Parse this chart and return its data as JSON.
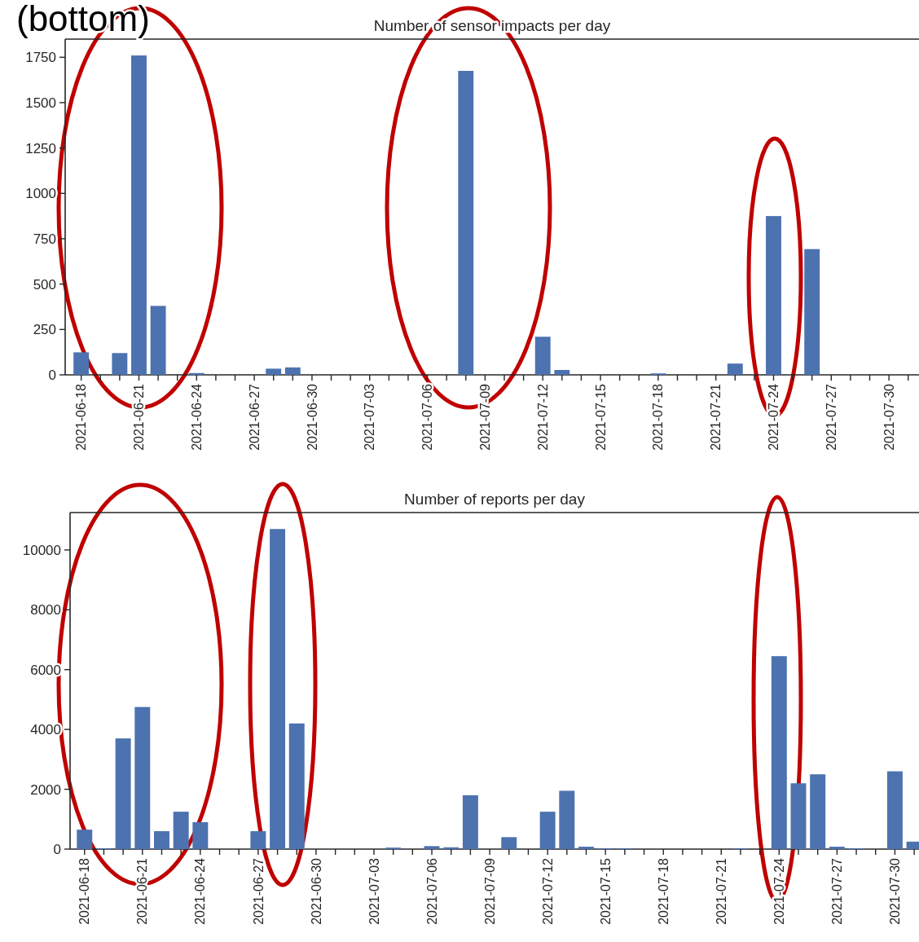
{
  "chart_data": [
    {
      "type": "bar",
      "title": "Number of sensor impacts per day",
      "color": "#4c72b0",
      "grid": false,
      "annotations": [
        "(bottom)"
      ],
      "x": [
        "2021-06-18",
        "2021-06-20",
        "2021-06-21",
        "2021-06-22",
        "2021-06-24",
        "2021-06-28",
        "2021-06-29",
        "2021-07-08",
        "2021-07-12",
        "2021-07-13",
        "2021-07-18",
        "2021-07-22",
        "2021-07-24",
        "2021-07-26"
      ],
      "values": [
        124,
        120,
        1760,
        380,
        10,
        34,
        41,
        1675,
        210,
        27,
        8,
        62,
        875,
        693
      ],
      "xlim": [
        "2021-06-17T04:00",
        "2021-07-31T13:30"
      ],
      "ylim": [
        0,
        1850
      ],
      "yticks": [
        0,
        250,
        500,
        750,
        1000,
        1250,
        1500,
        1750
      ],
      "xticks": [
        "2021-06-18",
        {
          "value": "2021-06-19",
          "label": null
        },
        {
          "value": "2021-06-20",
          "label": null
        },
        "2021-06-21",
        {
          "value": "2021-06-22",
          "label": null
        },
        {
          "value": "2021-06-23",
          "label": null
        },
        "2021-06-24",
        {
          "value": "2021-06-25",
          "label": null
        },
        {
          "value": "2021-06-26",
          "label": null
        },
        "2021-06-27",
        {
          "value": "2021-06-28",
          "label": null
        },
        {
          "value": "2021-06-29",
          "label": null
        },
        "2021-06-30",
        {
          "value": "2021-07-01",
          "label": null
        },
        {
          "value": "2021-07-02",
          "label": null
        },
        "2021-07-03",
        {
          "value": "2021-07-04",
          "label": null
        },
        {
          "value": "2021-07-05",
          "label": null
        },
        "2021-07-06",
        {
          "value": "2021-07-07",
          "label": null
        },
        {
          "value": "2021-07-08",
          "label": null
        },
        "2021-07-09",
        {
          "value": "2021-07-10",
          "label": null
        },
        {
          "value": "2021-07-11",
          "label": null
        },
        "2021-07-12",
        {
          "value": "2021-07-13",
          "label": null
        },
        {
          "value": "2021-07-14",
          "label": null
        },
        "2021-07-15",
        {
          "value": "2021-07-16",
          "label": null
        },
        {
          "value": "2021-07-17",
          "label": null
        },
        "2021-07-18",
        {
          "value": "2021-07-19",
          "label": null
        },
        {
          "value": "2021-07-20",
          "label": null
        },
        "2021-07-21",
        {
          "value": "2021-07-22",
          "label": null
        },
        {
          "value": "2021-07-23",
          "label": null
        },
        "2021-07-24",
        {
          "value": "2021-07-25",
          "label": null
        },
        {
          "value": "2021-07-26",
          "label": null
        },
        "2021-07-27",
        {
          "value": "2021-07-28",
          "label": null
        },
        {
          "value": "2021-07-29",
          "label": null
        },
        "2021-07-30",
        {
          "value": "2021-07-31",
          "label": null
        }
      ]
    },
    {
      "type": "bar",
      "title": "Number of reports per day",
      "color": "#4c72b0",
      "grid": false,
      "x": [
        "2021-06-18",
        "2021-06-19",
        "2021-06-20",
        "2021-06-21",
        "2021-06-22",
        "2021-06-23",
        "2021-06-24",
        "2021-06-27",
        "2021-06-28",
        "2021-06-29",
        "2021-07-04",
        "2021-07-06",
        "2021-07-07",
        "2021-07-08",
        "2021-07-10",
        "2021-07-12",
        "2021-07-13",
        "2021-07-14",
        "2021-07-15",
        "2021-07-16",
        "2021-07-22",
        "2021-07-24",
        "2021-07-25",
        "2021-07-26",
        "2021-07-27",
        "2021-07-28",
        "2021-07-30",
        "2021-07-31"
      ],
      "values": [
        650,
        30,
        3700,
        4750,
        600,
        1250,
        900,
        600,
        10700,
        4200,
        50,
        100,
        60,
        1800,
        400,
        1250,
        1950,
        80,
        30,
        30,
        30,
        6450,
        2200,
        2500,
        80,
        30,
        2600,
        250
      ],
      "xlim": [
        "2021-06-17T06:00",
        "2021-07-31T06:00"
      ],
      "ylim": [
        0,
        11250
      ],
      "yticks": [
        0,
        2000,
        4000,
        6000,
        8000,
        10000
      ],
      "xticks": [
        "2021-06-18",
        {
          "value": "2021-06-19",
          "label": null
        },
        {
          "value": "2021-06-20",
          "label": null
        },
        "2021-06-21",
        {
          "value": "2021-06-22",
          "label": null
        },
        {
          "value": "2021-06-23",
          "label": null
        },
        "2021-06-24",
        {
          "value": "2021-06-25",
          "label": null
        },
        {
          "value": "2021-06-26",
          "label": null
        },
        "2021-06-27",
        {
          "value": "2021-06-28",
          "label": null
        },
        {
          "value": "2021-06-29",
          "label": null
        },
        "2021-06-30",
        {
          "value": "2021-07-01",
          "label": null
        },
        {
          "value": "2021-07-02",
          "label": null
        },
        "2021-07-03",
        {
          "value": "2021-07-04",
          "label": null
        },
        {
          "value": "2021-07-05",
          "label": null
        },
        "2021-07-06",
        {
          "value": "2021-07-07",
          "label": null
        },
        {
          "value": "2021-07-08",
          "label": null
        },
        "2021-07-09",
        {
          "value": "2021-07-10",
          "label": null
        },
        {
          "value": "2021-07-11",
          "label": null
        },
        "2021-07-12",
        {
          "value": "2021-07-13",
          "label": null
        },
        {
          "value": "2021-07-14",
          "label": null
        },
        "2021-07-15",
        {
          "value": "2021-07-16",
          "label": null
        },
        {
          "value": "2021-07-17",
          "label": null
        },
        "2021-07-18",
        {
          "value": "2021-07-19",
          "label": null
        },
        {
          "value": "2021-07-20",
          "label": null
        },
        "2021-07-21",
        {
          "value": "2021-07-22",
          "label": null
        },
        {
          "value": "2021-07-23",
          "label": null
        },
        "2021-07-24",
        {
          "value": "2021-07-25",
          "label": null
        },
        {
          "value": "2021-07-26",
          "label": null
        },
        "2021-07-27",
        {
          "value": "2021-07-28",
          "label": null
        },
        {
          "value": "2021-07-29",
          "label": null
        },
        "2021-07-30",
        {
          "value": "2021-07-31",
          "label": null
        }
      ]
    }
  ]
}
